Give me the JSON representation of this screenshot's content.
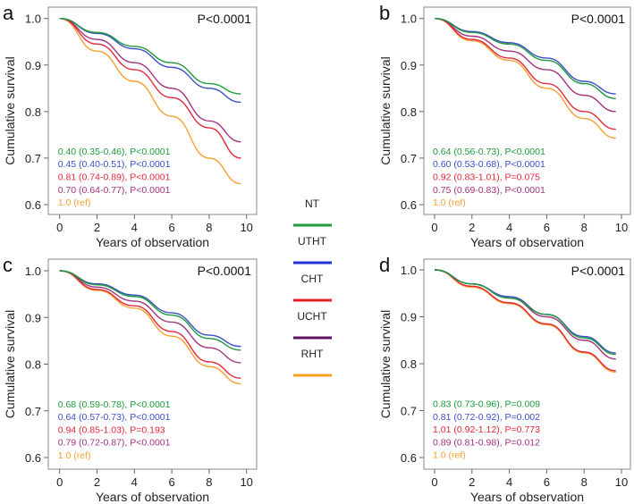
{
  "chart_data": {
    "type": "line",
    "xlabel": "Years of observation",
    "ylabel": "Cumulative survival",
    "xlim": [
      0,
      10
    ],
    "ylim": [
      0.6,
      1.0
    ],
    "xticks": [
      "0",
      "2",
      "4",
      "6",
      "8",
      "10"
    ],
    "yticks": [
      "0.6",
      "0.7",
      "0.8",
      "0.9",
      "1.0"
    ],
    "legend": {
      "placement": "center",
      "entries": [
        {
          "name": "NT",
          "color": "#1e9a3c"
        },
        {
          "name": "UTHT",
          "color": "#2332d8"
        },
        {
          "name": "CHT",
          "color": "#e8202a"
        },
        {
          "name": "UCHT",
          "color": "#5c1660"
        },
        {
          "name": "RHT",
          "color": "#f7a01c"
        }
      ]
    },
    "curve_colors": [
      "#1e9a3c",
      "#3a4fc8",
      "#e3283a",
      "#a2337f",
      "#f5a030"
    ],
    "x": [
      0,
      2,
      4,
      6,
      8,
      9.7
    ],
    "panels": [
      {
        "letter": "a",
        "pvalue": "P<0.0001",
        "series": [
          {
            "name": "NT",
            "values": [
              1,
              0.97,
              0.94,
              0.905,
              0.86,
              0.838
            ]
          },
          {
            "name": "UTHT",
            "values": [
              1,
              0.968,
              0.935,
              0.895,
              0.85,
              0.82
            ]
          },
          {
            "name": "CHT",
            "values": [
              1,
              0.945,
              0.89,
              0.83,
              0.765,
              0.7
            ]
          },
          {
            "name": "UCHT",
            "values": [
              1,
              0.955,
              0.905,
              0.85,
              0.78,
              0.735
            ]
          },
          {
            "name": "RHT",
            "values": [
              1,
              0.93,
              0.865,
              0.79,
              0.7,
              0.645
            ]
          }
        ],
        "stats": [
          "0.40 (0.35-0.46), P<0.0001",
          "0.45 (0.40-0.51), P<0.0001",
          "0.81 (0.74-0.89), P<0.0001",
          "0.70 (0.64-0.77), P<0.0001",
          "1.0 (ref)"
        ]
      },
      {
        "letter": "b",
        "pvalue": "P<0.0001",
        "series": [
          {
            "name": "NT",
            "values": [
              1,
              0.97,
              0.945,
              0.91,
              0.86,
              0.828
            ]
          },
          {
            "name": "UTHT",
            "values": [
              1,
              0.972,
              0.948,
              0.915,
              0.865,
              0.838
            ]
          },
          {
            "name": "CHT",
            "values": [
              1,
              0.955,
              0.915,
              0.86,
              0.8,
              0.762
            ]
          },
          {
            "name": "UCHT",
            "values": [
              1,
              0.962,
              0.93,
              0.89,
              0.835,
              0.8
            ]
          },
          {
            "name": "RHT",
            "values": [
              1,
              0.952,
              0.91,
              0.85,
              0.785,
              0.743
            ]
          }
        ],
        "stats": [
          "0.64 (0.56-0.73), P<0.0001",
          "0.60 (0.53-0.68), P<0.0001",
          "0.92 (0.83-1.01), P=0.075",
          "0.75 (0.69-0.83), P<0.0001",
          "1.0 (ref)"
        ]
      },
      {
        "letter": "c",
        "pvalue": "P<0.0001",
        "series": [
          {
            "name": "NT",
            "values": [
              1,
              0.97,
              0.945,
              0.905,
              0.855,
              0.83
            ]
          },
          {
            "name": "UTHT",
            "values": [
              1,
              0.972,
              0.948,
              0.91,
              0.862,
              0.838
            ]
          },
          {
            "name": "CHT",
            "values": [
              1,
              0.96,
              0.925,
              0.87,
              0.805,
              0.77
            ]
          },
          {
            "name": "UCHT",
            "values": [
              1,
              0.965,
              0.935,
              0.89,
              0.835,
              0.803
            ]
          },
          {
            "name": "RHT",
            "values": [
              1,
              0.958,
              0.92,
              0.86,
              0.795,
              0.758
            ]
          }
        ],
        "stats": [
          "0.68 (0.59-0.78), P<0.0001",
          "0.64 (0.57-0.73), P<0.0001",
          "0.94 (0.85-1.03), P=0.193",
          "0.79 (0.72-0.87), P<0.0001",
          "1.0 (ref)"
        ]
      },
      {
        "letter": "d",
        "pvalue": "P<0.0001",
        "series": [
          {
            "name": "NT",
            "values": [
              1,
              0.97,
              0.94,
              0.905,
              0.855,
              0.82
            ]
          },
          {
            "name": "UTHT",
            "values": [
              1,
              0.97,
              0.943,
              0.905,
              0.858,
              0.823
            ]
          },
          {
            "name": "CHT",
            "values": [
              1,
              0.965,
              0.93,
              0.885,
              0.825,
              0.785
            ]
          },
          {
            "name": "UCHT",
            "values": [
              1,
              0.97,
              0.94,
              0.9,
              0.85,
              0.81
            ]
          },
          {
            "name": "RHT",
            "values": [
              1,
              0.963,
              0.928,
              0.883,
              0.823,
              0.782
            ]
          }
        ],
        "stats": [
          "0.83 (0.73-0.96), P=0.009",
          "0.81 (0.72-0.92), P=0.002",
          "1.01 (0.92-1.12), P=0.773",
          "0.89 (0.81-0.98), P=0.012",
          "1.0 (ref)"
        ]
      }
    ]
  }
}
